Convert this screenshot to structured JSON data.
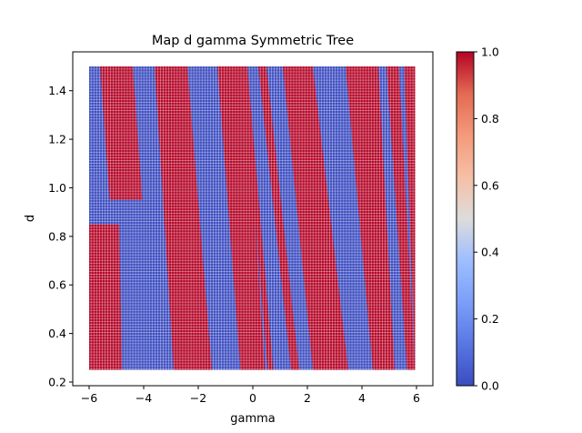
{
  "chart_data": {
    "type": "heatmap",
    "title": "Map d gamma Symmetric Tree",
    "xlabel": "gamma",
    "ylabel": "d",
    "xlim": [
      -6.6,
      6.6
    ],
    "ylim": [
      0.185,
      1.56
    ],
    "x_range": [
      -6.0,
      5.95
    ],
    "y_range": [
      0.25,
      1.5
    ],
    "x_ticks": [
      -6,
      -4,
      -2,
      0,
      2,
      4,
      6
    ],
    "x_tick_labels": [
      "−6",
      "−4",
      "−2",
      "0",
      "2",
      "4",
      "6"
    ],
    "y_ticks": [
      0.2,
      0.4,
      0.6,
      0.8,
      1.0,
      1.2,
      1.4
    ],
    "y_tick_labels": [
      "0.2",
      "0.4",
      "0.6",
      "0.8",
      "1.0",
      "1.2",
      "1.4"
    ],
    "grid": false,
    "colormap": "coolwarm",
    "color_low": "#3b4cc0",
    "color_high": "#b40426",
    "colorbar": {
      "range": [
        0.0,
        1.0
      ],
      "ticks": [
        0.0,
        0.2,
        0.4,
        0.6,
        0.8,
        1.0
      ],
      "tick_labels": [
        "0.0",
        "0.2",
        "0.4",
        "0.6",
        "0.8",
        "1.0"
      ]
    },
    "regions_value_1": [
      {
        "x_at_top": [
          -6.0,
          -5.0
        ],
        "x_at_bottom": [
          -6.0,
          -4.8
        ],
        "y_from": 0.25,
        "y_to": 0.85
      },
      {
        "x_at_top": [
          -5.6,
          -4.4
        ],
        "x_at_bottom": [
          -4.8,
          -3.6
        ],
        "y_from": 0.95,
        "y_to": 1.5
      },
      {
        "x_at_top": [
          -3.6,
          -2.4
        ],
        "x_at_bottom": [
          -2.9,
          -1.5
        ]
      },
      {
        "x_at_top": [
          -1.3,
          -0.3
        ],
        "x_at_bottom": [
          -0.45,
          0.45
        ]
      },
      {
        "x_at_top": [
          -0.4,
          -0.2
        ],
        "x_at_bottom": [
          0.55,
          0.75
        ]
      },
      {
        "x_at_top": [
          0.2,
          0.5
        ],
        "x_at_bottom": [
          1.4,
          1.7
        ]
      },
      {
        "x_at_top": [
          1.1,
          2.2
        ],
        "x_at_bottom": [
          2.2,
          3.5
        ]
      },
      {
        "x_at_top": [
          1.9,
          2.0
        ],
        "x_at_bottom": [
          3.0,
          3.1
        ]
      },
      {
        "x_at_top": [
          3.4,
          4.6
        ],
        "x_at_bottom": [
          4.4,
          5.2
        ]
      },
      {
        "x_at_top": [
          4.9,
          5.35
        ],
        "x_at_bottom": [
          5.65,
          5.95
        ]
      },
      {
        "x_at_top": [
          5.55,
          5.95
        ],
        "x_at_bottom": [
          5.95,
          5.95
        ]
      }
    ]
  }
}
